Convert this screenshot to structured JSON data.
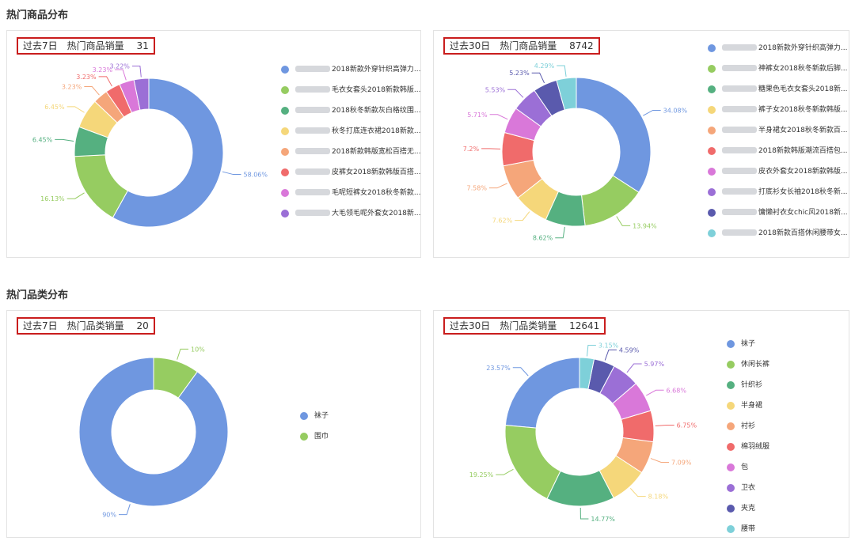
{
  "sections": [
    {
      "title": "热门商品分布"
    },
    {
      "title": "热门品类分布"
    }
  ],
  "chart_data": [
    {
      "type": "pie",
      "period": "过去7日",
      "metric_label": "热门商品销量",
      "total": "31",
      "categories": [
        "2018新款外穿针织高弹力...",
        "毛衣女套头2018新款韩版...",
        "2018秋冬新款灰白格纹围...",
        "秋冬打底连衣裙2018新款...",
        "2018新款韩版宽松百搭无...",
        "皮裤女2018新款韩版百搭...",
        "毛呢短裤女2018秋冬新款...",
        "大毛领毛呢外套女2018新..."
      ],
      "values": [
        58.06,
        16.13,
        6.45,
        6.45,
        3.23,
        3.23,
        3.23,
        3.22
      ],
      "value_labels": [
        "58.06%",
        "16.13%",
        "6.45%",
        "6.45%",
        "3.23%",
        "3.23%",
        "3.23%",
        "3.22%"
      ],
      "legend_placement": "right",
      "donut": true
    },
    {
      "type": "pie",
      "period": "过去30日",
      "metric_label": "热门商品销量",
      "total": "8742",
      "categories": [
        "2018新款外穿针织高弹力...",
        "神裤女2018秋冬新款后脚...",
        "糖果色毛衣女套头2018新...",
        "裤子女2018秋冬新款韩版...",
        "半身裙女2018秋冬新款百...",
        "2018新款韩版潮流百搭包...",
        "皮衣外套女2018新款韩版...",
        "打底衫女长袖2018秋冬新...",
        "慵懒衬衣女chic风2018新...",
        "2018新款百搭休闲腰带女..."
      ],
      "values": [
        34.08,
        13.94,
        8.62,
        7.62,
        7.58,
        7.2,
        5.71,
        5.53,
        5.23,
        4.29
      ],
      "value_labels": [
        "34.08%",
        "13.94%",
        "8.62%",
        "7.62%",
        "7.58%",
        "7.2%",
        "5.71%",
        "5.53%",
        "5.23%",
        "4.29%"
      ],
      "legend_placement": "right",
      "donut": true
    },
    {
      "type": "pie",
      "period": "过去7日",
      "metric_label": "热门品类销量",
      "total": "20",
      "categories": [
        "袜子",
        "围巾"
      ],
      "values": [
        90,
        10
      ],
      "value_labels": [
        "90%",
        "10%"
      ],
      "legend_placement": "right",
      "donut": true
    },
    {
      "type": "pie",
      "period": "过去30日",
      "metric_label": "热门品类销量",
      "total": "12641",
      "categories": [
        "袜子",
        "休闲长裤",
        "针织衫",
        "半身裙",
        "衬衫",
        "棉羽绒服",
        "包",
        "卫衣",
        "夹克",
        "腰带"
      ],
      "values": [
        23.57,
        19.25,
        14.77,
        8.18,
        7.09,
        6.75,
        6.68,
        5.97,
        4.59,
        3.15
      ],
      "value_labels": [
        "23.57%",
        "19.25%",
        "14.77%",
        "8.18%",
        "7.09%",
        "6.75%",
        "6.68%",
        "5.97%",
        "4.59%",
        "3.15%"
      ],
      "legend_placement": "right",
      "donut": true
    }
  ],
  "palette": [
    "#6f97e0",
    "#96cc61",
    "#55b080",
    "#f5d77a",
    "#f5a67a",
    "#f06b6b",
    "#d978d9",
    "#9b6fd6",
    "#5a5aad",
    "#7ed0d9"
  ]
}
